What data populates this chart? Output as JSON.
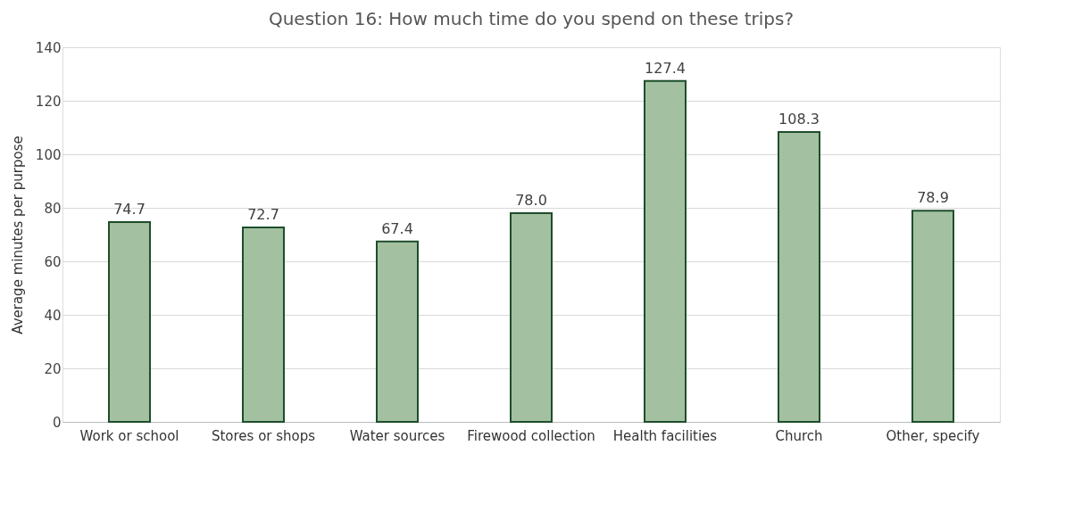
{
  "chart_data": {
    "type": "bar",
    "title": "Question 16: How much time do you spend on these trips?",
    "ylabel": "Average minutes per purpose",
    "categories": [
      "Work or school",
      "Stores or shops",
      "Water sources",
      "Firewood collection",
      "Health facilities",
      "Church",
      "Other, specify"
    ],
    "values": [
      74.7,
      72.7,
      67.4,
      78.0,
      127.4,
      108.3,
      78.9
    ],
    "value_labels": [
      "74.7",
      "72.7",
      "67.4",
      "78.0",
      "127.4",
      "108.3",
      "78.9"
    ],
    "color": "#a3c1a0",
    "ylim": [
      0,
      140
    ],
    "yticks": [
      0,
      20,
      40,
      60,
      80,
      100,
      120,
      140
    ],
    "grid": "y"
  }
}
